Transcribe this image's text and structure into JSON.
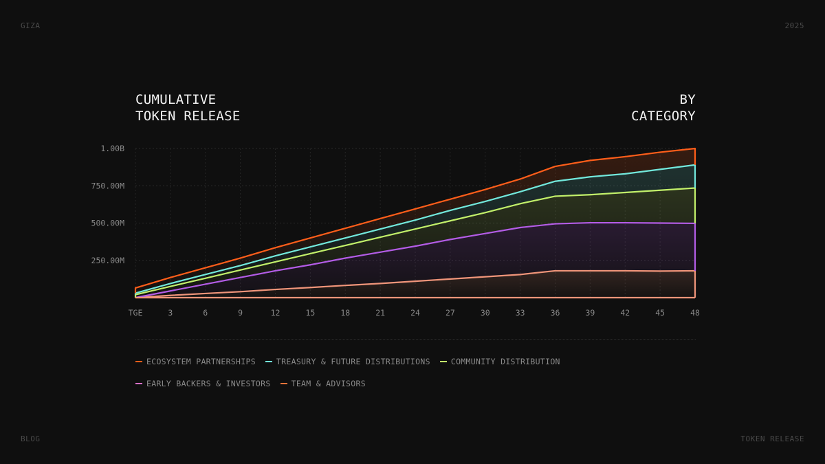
{
  "corners": {
    "top_left": "GIZA",
    "top_right": "2025",
    "bottom_left": "BLOG",
    "bottom_right": "TOKEN RELEASE"
  },
  "chart_data": {
    "type": "area",
    "stacked": true,
    "title": "CUMULATIVE\nTOKEN RELEASE",
    "subtitle": "BY\nCATEGORY",
    "x": [
      0,
      3,
      6,
      9,
      12,
      15,
      18,
      21,
      24,
      27,
      30,
      33,
      36,
      39,
      42,
      45,
      48
    ],
    "x_tick_labels": [
      "TGE",
      "3",
      "6",
      "9",
      "12",
      "15",
      "18",
      "21",
      "24",
      "27",
      "30",
      "33",
      "36",
      "39",
      "42",
      "45",
      "48"
    ],
    "xlim": [
      0,
      48
    ],
    "ylim": [
      0,
      1000000000
    ],
    "y_ticks": [
      250000000,
      500000000,
      750000000,
      1000000000
    ],
    "y_tick_labels": [
      "250.00M",
      "500.00M",
      "750.00M",
      "1.00B"
    ],
    "grid": true,
    "legend_placement": "bottom",
    "series": [
      {
        "name": "TEAM & ADVISORS",
        "color": "#f0957a",
        "values": [
          0,
          15,
          28,
          40,
          55,
          68,
          82,
          95,
          110,
          125,
          140,
          155,
          180,
          180,
          180,
          178,
          180
        ]
      },
      {
        "name": "EARLY BACKERS & INVESTORS",
        "color": "#b35ce6",
        "values": [
          0,
          30,
          62,
          95,
          125,
          152,
          183,
          210,
          235,
          265,
          290,
          315,
          315,
          322,
          322,
          322,
          318
        ]
      },
      {
        "name": "COMMUNITY DISTRIBUTION",
        "color": "#c2f06a",
        "values": [
          20,
          30,
          40,
          50,
          60,
          75,
          85,
          100,
          115,
          125,
          140,
          160,
          185,
          188,
          203,
          220,
          237
        ]
      },
      {
        "name": "TREASURY & FUTURE DISTRIBUTIONS",
        "color": "#72e8dc",
        "values": [
          10,
          20,
          25,
          30,
          40,
          45,
          50,
          55,
          60,
          70,
          75,
          80,
          100,
          120,
          125,
          140,
          155
        ]
      },
      {
        "name": "ECOSYSTEM PARTNERSHIPS",
        "color": "#ff5e1a",
        "values": [
          35,
          40,
          45,
          50,
          55,
          60,
          65,
          70,
          75,
          75,
          80,
          85,
          100,
          110,
          115,
          115,
          110
        ]
      }
    ],
    "value_unit": "M tokens"
  },
  "legend": {
    "row1": [
      {
        "label": "ECOSYSTEM PARTNERSHIPS",
        "color": "#ff5e1a"
      },
      {
        "label": "TREASURY & FUTURE DISTRIBUTIONS",
        "color": "#72e8dc"
      },
      {
        "label": "COMMUNITY DISTRIBUTION",
        "color": "#c2f06a"
      }
    ],
    "row2": [
      {
        "label": "EARLY BACKERS & INVESTORS",
        "color": "#d870c8"
      },
      {
        "label": "TEAM & ADVISORS",
        "color": "#e8743a"
      }
    ]
  },
  "title_left_lines": [
    "CUMULATIVE",
    "TOKEN RELEASE"
  ],
  "title_right_lines": [
    "BY",
    "CATEGORY"
  ]
}
